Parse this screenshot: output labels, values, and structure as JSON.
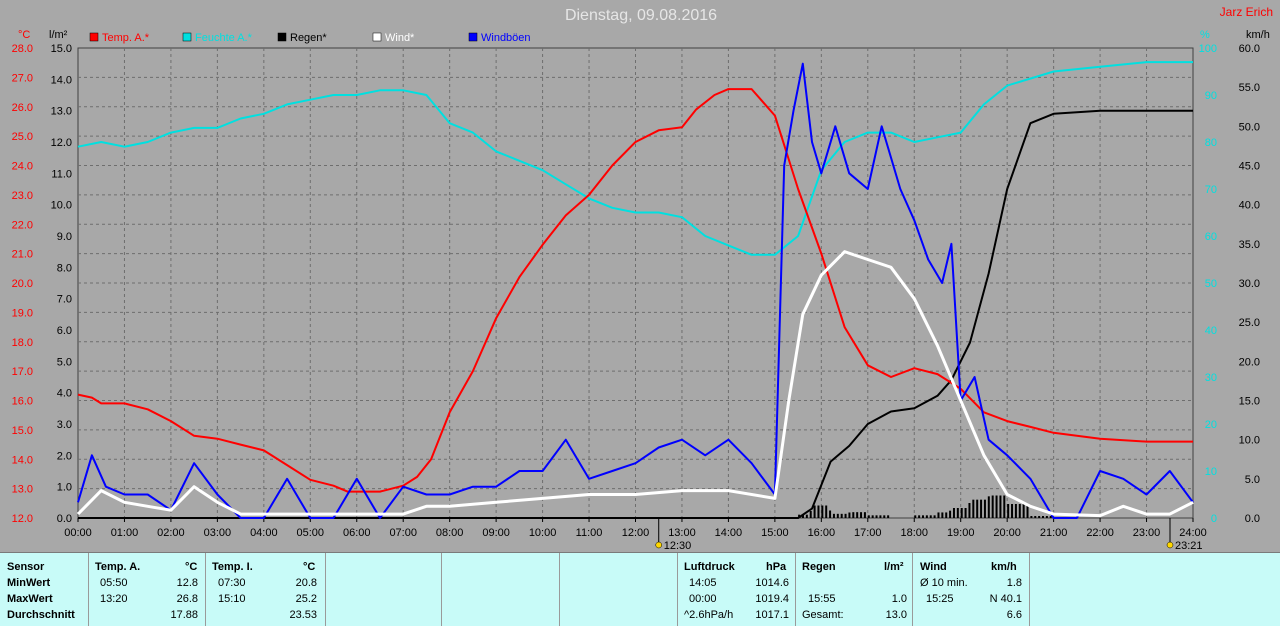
{
  "title": "Dienstag, 09.08.2016",
  "author": "Jarz Erich",
  "axes": {
    "left_unit": "°C",
    "left2_unit": "l/m²",
    "right_unit": "%",
    "right2_unit": "km/h"
  },
  "legend": [
    {
      "label": "Temp. A.*",
      "color": "#ff0000"
    },
    {
      "label": "Feuchte A.*",
      "color": "#00e0e0"
    },
    {
      "label": "Regen*",
      "color": "#000000"
    },
    {
      "label": "Wind*",
      "color": "#ffffff"
    },
    {
      "label": "Windböen",
      "color": "#0000ff"
    }
  ],
  "markers": [
    {
      "label": "12:30"
    },
    {
      "label": "23:21"
    }
  ],
  "chart_data": {
    "type": "line",
    "title": "Dienstag, 09.08.2016",
    "x_range": [
      0,
      24
    ],
    "x_ticks": [
      "00:00",
      "01:00",
      "02:00",
      "03:00",
      "04:00",
      "05:00",
      "06:00",
      "07:00",
      "08:00",
      "09:00",
      "10:00",
      "11:00",
      "12:00",
      "13:00",
      "14:00",
      "15:00",
      "16:00",
      "17:00",
      "18:00",
      "19:00",
      "20:00",
      "21:00",
      "22:00",
      "23:00",
      "24:00"
    ],
    "temp_axis": {
      "range": [
        12,
        28
      ],
      "ticks": [
        "12.0",
        "13.0",
        "14.0",
        "15.0",
        "16.0",
        "17.0",
        "18.0",
        "19.0",
        "20.0",
        "21.0",
        "22.0",
        "23.0",
        "24.0",
        "25.0",
        "26.0",
        "27.0",
        "28.0"
      ]
    },
    "rain_axis": {
      "range": [
        0,
        15
      ],
      "ticks": [
        "0.0",
        "1.0",
        "2.0",
        "3.0",
        "4.0",
        "5.0",
        "6.0",
        "7.0",
        "8.0",
        "9.0",
        "10.0",
        "11.0",
        "12.0",
        "13.0",
        "14.0",
        "15.0"
      ]
    },
    "humidity_axis": {
      "range": [
        0,
        100
      ],
      "ticks": [
        "0",
        "10",
        "20",
        "30",
        "40",
        "50",
        "60",
        "70",
        "80",
        "90",
        "100"
      ]
    },
    "wind_axis": {
      "range": [
        0,
        60
      ],
      "ticks": [
        "0.0",
        "5.0",
        "10.0",
        "15.0",
        "20.0",
        "25.0",
        "30.0",
        "35.0",
        "40.0",
        "45.0",
        "50.0",
        "55.0",
        "60.0"
      ]
    },
    "grid": true,
    "series": [
      {
        "name": "Temp. A.*",
        "color": "#ff0000",
        "axis": "temp",
        "points": [
          [
            0,
            16.2
          ],
          [
            0.3,
            16.1
          ],
          [
            0.5,
            15.9
          ],
          [
            1,
            15.9
          ],
          [
            1.5,
            15.7
          ],
          [
            2,
            15.3
          ],
          [
            2.5,
            14.8
          ],
          [
            3,
            14.7
          ],
          [
            3.5,
            14.5
          ],
          [
            4,
            14.3
          ],
          [
            4.5,
            13.8
          ],
          [
            5,
            13.3
          ],
          [
            5.5,
            13.1
          ],
          [
            5.8,
            12.9
          ],
          [
            6.5,
            12.9
          ],
          [
            7,
            13.1
          ],
          [
            7.3,
            13.4
          ],
          [
            7.6,
            14.0
          ],
          [
            8,
            15.6
          ],
          [
            8.5,
            17.0
          ],
          [
            9,
            18.8
          ],
          [
            9.5,
            20.2
          ],
          [
            10,
            21.3
          ],
          [
            10.5,
            22.3
          ],
          [
            11,
            23.0
          ],
          [
            11.5,
            24.0
          ],
          [
            12,
            24.8
          ],
          [
            12.5,
            25.2
          ],
          [
            13,
            25.3
          ],
          [
            13.3,
            25.9
          ],
          [
            13.7,
            26.4
          ],
          [
            14,
            26.6
          ],
          [
            14.5,
            26.6
          ],
          [
            15,
            25.7
          ],
          [
            15.5,
            23.2
          ],
          [
            16,
            21.0
          ],
          [
            16.5,
            18.5
          ],
          [
            17,
            17.2
          ],
          [
            17.5,
            16.8
          ],
          [
            18,
            17.1
          ],
          [
            18.5,
            16.9
          ],
          [
            19,
            16.4
          ],
          [
            19.5,
            15.6
          ],
          [
            20,
            15.3
          ],
          [
            20.5,
            15.1
          ],
          [
            21,
            14.9
          ],
          [
            22,
            14.7
          ],
          [
            23,
            14.6
          ],
          [
            24,
            14.6
          ]
        ]
      },
      {
        "name": "Feuchte A.*",
        "color": "#00e0e0",
        "axis": "humidity",
        "points": [
          [
            0,
            79
          ],
          [
            0.5,
            80
          ],
          [
            1,
            79
          ],
          [
            1.5,
            80
          ],
          [
            2,
            82
          ],
          [
            2.5,
            83
          ],
          [
            3,
            83
          ],
          [
            3.5,
            85
          ],
          [
            4,
            86
          ],
          [
            4.5,
            88
          ],
          [
            5,
            89
          ],
          [
            5.5,
            90
          ],
          [
            6,
            90
          ],
          [
            6.5,
            91
          ],
          [
            7,
            91
          ],
          [
            7.5,
            90
          ],
          [
            8,
            84
          ],
          [
            8.5,
            82
          ],
          [
            9,
            78
          ],
          [
            9.5,
            76
          ],
          [
            10,
            74
          ],
          [
            10.5,
            71
          ],
          [
            11,
            68
          ],
          [
            11.5,
            66
          ],
          [
            12,
            65
          ],
          [
            12.5,
            65
          ],
          [
            13,
            64
          ],
          [
            13.5,
            60
          ],
          [
            14,
            58
          ],
          [
            14.5,
            56
          ],
          [
            15,
            56
          ],
          [
            15.5,
            60
          ],
          [
            16,
            74
          ],
          [
            16.5,
            80
          ],
          [
            17,
            82
          ],
          [
            17.5,
            82
          ],
          [
            18,
            80
          ],
          [
            18.5,
            81
          ],
          [
            19,
            82
          ],
          [
            19.5,
            88
          ],
          [
            20,
            92
          ],
          [
            21,
            95
          ],
          [
            22,
            96
          ],
          [
            23,
            97
          ],
          [
            24,
            97
          ]
        ]
      },
      {
        "name": "Regen*",
        "color": "#000000",
        "axis": "rain",
        "points": [
          [
            0,
            0
          ],
          [
            15.5,
            0
          ],
          [
            15.8,
            0.3
          ],
          [
            16.2,
            1.8
          ],
          [
            16.6,
            2.3
          ],
          [
            17,
            3.0
          ],
          [
            17.5,
            3.4
          ],
          [
            18,
            3.5
          ],
          [
            18.5,
            3.9
          ],
          [
            18.8,
            4.4
          ],
          [
            19.2,
            5.6
          ],
          [
            19.6,
            7.8
          ],
          [
            20,
            10.5
          ],
          [
            20.5,
            12.6
          ],
          [
            21,
            12.9
          ],
          [
            22,
            13.0
          ],
          [
            24,
            13.0
          ]
        ]
      },
      {
        "name": "Wind*",
        "color": "#ffffff",
        "axis": "wind",
        "points": [
          [
            0,
            0.5
          ],
          [
            0.5,
            3.5
          ],
          [
            1,
            2
          ],
          [
            1.5,
            1.5
          ],
          [
            2,
            1
          ],
          [
            2.5,
            4
          ],
          [
            3,
            2
          ],
          [
            3.5,
            0.5
          ],
          [
            4,
            0.5
          ],
          [
            5,
            0.5
          ],
          [
            6,
            0.5
          ],
          [
            7,
            0.5
          ],
          [
            7.5,
            1.5
          ],
          [
            8,
            1.5
          ],
          [
            9,
            2
          ],
          [
            10,
            2.5
          ],
          [
            11,
            3
          ],
          [
            12,
            3
          ],
          [
            13,
            3.5
          ],
          [
            14,
            3.5
          ],
          [
            15,
            2.5
          ],
          [
            15.3,
            15
          ],
          [
            15.6,
            26
          ],
          [
            16,
            31
          ],
          [
            16.5,
            34
          ],
          [
            17,
            33
          ],
          [
            17.5,
            32
          ],
          [
            18,
            28
          ],
          [
            18.5,
            22
          ],
          [
            19,
            15
          ],
          [
            19.5,
            8
          ],
          [
            20,
            3
          ],
          [
            20.5,
            1.5
          ],
          [
            21,
            0.5
          ],
          [
            22,
            0.3
          ],
          [
            22.5,
            1.5
          ],
          [
            23,
            0.5
          ],
          [
            23.5,
            0.5
          ],
          [
            24,
            2
          ]
        ]
      },
      {
        "name": "Windböen",
        "color": "#0000ff",
        "axis": "wind",
        "points": [
          [
            0,
            2
          ],
          [
            0.3,
            8
          ],
          [
            0.6,
            4
          ],
          [
            1,
            3
          ],
          [
            1.5,
            3
          ],
          [
            2,
            1
          ],
          [
            2.5,
            7
          ],
          [
            3,
            3
          ],
          [
            3.5,
            0
          ],
          [
            4,
            0
          ],
          [
            4.5,
            5
          ],
          [
            5,
            0
          ],
          [
            5.5,
            0
          ],
          [
            6,
            5
          ],
          [
            6.5,
            0
          ],
          [
            7,
            4
          ],
          [
            7.5,
            3
          ],
          [
            8,
            3
          ],
          [
            8.5,
            4
          ],
          [
            9,
            4
          ],
          [
            9.5,
            6
          ],
          [
            10,
            6
          ],
          [
            10.5,
            10
          ],
          [
            11,
            5
          ],
          [
            11.5,
            6
          ],
          [
            12,
            7
          ],
          [
            12.5,
            9
          ],
          [
            13,
            10
          ],
          [
            13.5,
            8
          ],
          [
            14,
            10
          ],
          [
            14.5,
            7
          ],
          [
            15,
            3
          ],
          [
            15.2,
            45
          ],
          [
            15.4,
            52
          ],
          [
            15.6,
            58
          ],
          [
            15.8,
            48
          ],
          [
            16,
            44
          ],
          [
            16.3,
            50
          ],
          [
            16.6,
            44
          ],
          [
            17,
            42
          ],
          [
            17.3,
            50
          ],
          [
            17.7,
            42
          ],
          [
            18,
            38
          ],
          [
            18.3,
            33
          ],
          [
            18.6,
            30
          ],
          [
            18.8,
            35
          ],
          [
            19,
            15
          ],
          [
            19.3,
            18
          ],
          [
            19.6,
            10
          ],
          [
            20,
            8
          ],
          [
            20.5,
            5
          ],
          [
            21,
            0
          ],
          [
            21.5,
            0
          ],
          [
            22,
            6
          ],
          [
            22.5,
            5
          ],
          [
            23,
            3
          ],
          [
            23.5,
            6
          ],
          [
            24,
            2
          ]
        ]
      }
    ]
  },
  "panel": {
    "sensor": {
      "header": "Sensor",
      "rows": [
        "MinWert",
        "MaxWert",
        "Durchschnitt"
      ]
    },
    "temp_a": {
      "header": "Temp. A.",
      "unit": "°C",
      "times": [
        "05:50",
        "13:20",
        ""
      ],
      "values": [
        "12.8",
        "26.8",
        "17.88"
      ]
    },
    "temp_i": {
      "header": "Temp. I.",
      "unit": "°C",
      "times": [
        "07:30",
        "15:10",
        ""
      ],
      "values": [
        "20.8",
        "25.2",
        "23.53"
      ]
    },
    "pressure": {
      "header": "Luftdruck",
      "unit": "hPa",
      "times": [
        "14:05",
        "00:00",
        "^2.6hPa/h"
      ],
      "values": [
        "1014.6",
        "1019.4",
        "1017.1"
      ]
    },
    "rain": {
      "header": "Regen",
      "unit": "l/m²",
      "times": [
        "",
        "15:55",
        "Gesamt:"
      ],
      "values": [
        "",
        "1.0",
        "13.0"
      ]
    },
    "wind": {
      "header": "Wind",
      "unit": "km/h",
      "times": [
        "Ø 10 min.",
        "15:25",
        ""
      ],
      "values": [
        "1.8",
        "N 40.1",
        "6.6"
      ]
    }
  }
}
